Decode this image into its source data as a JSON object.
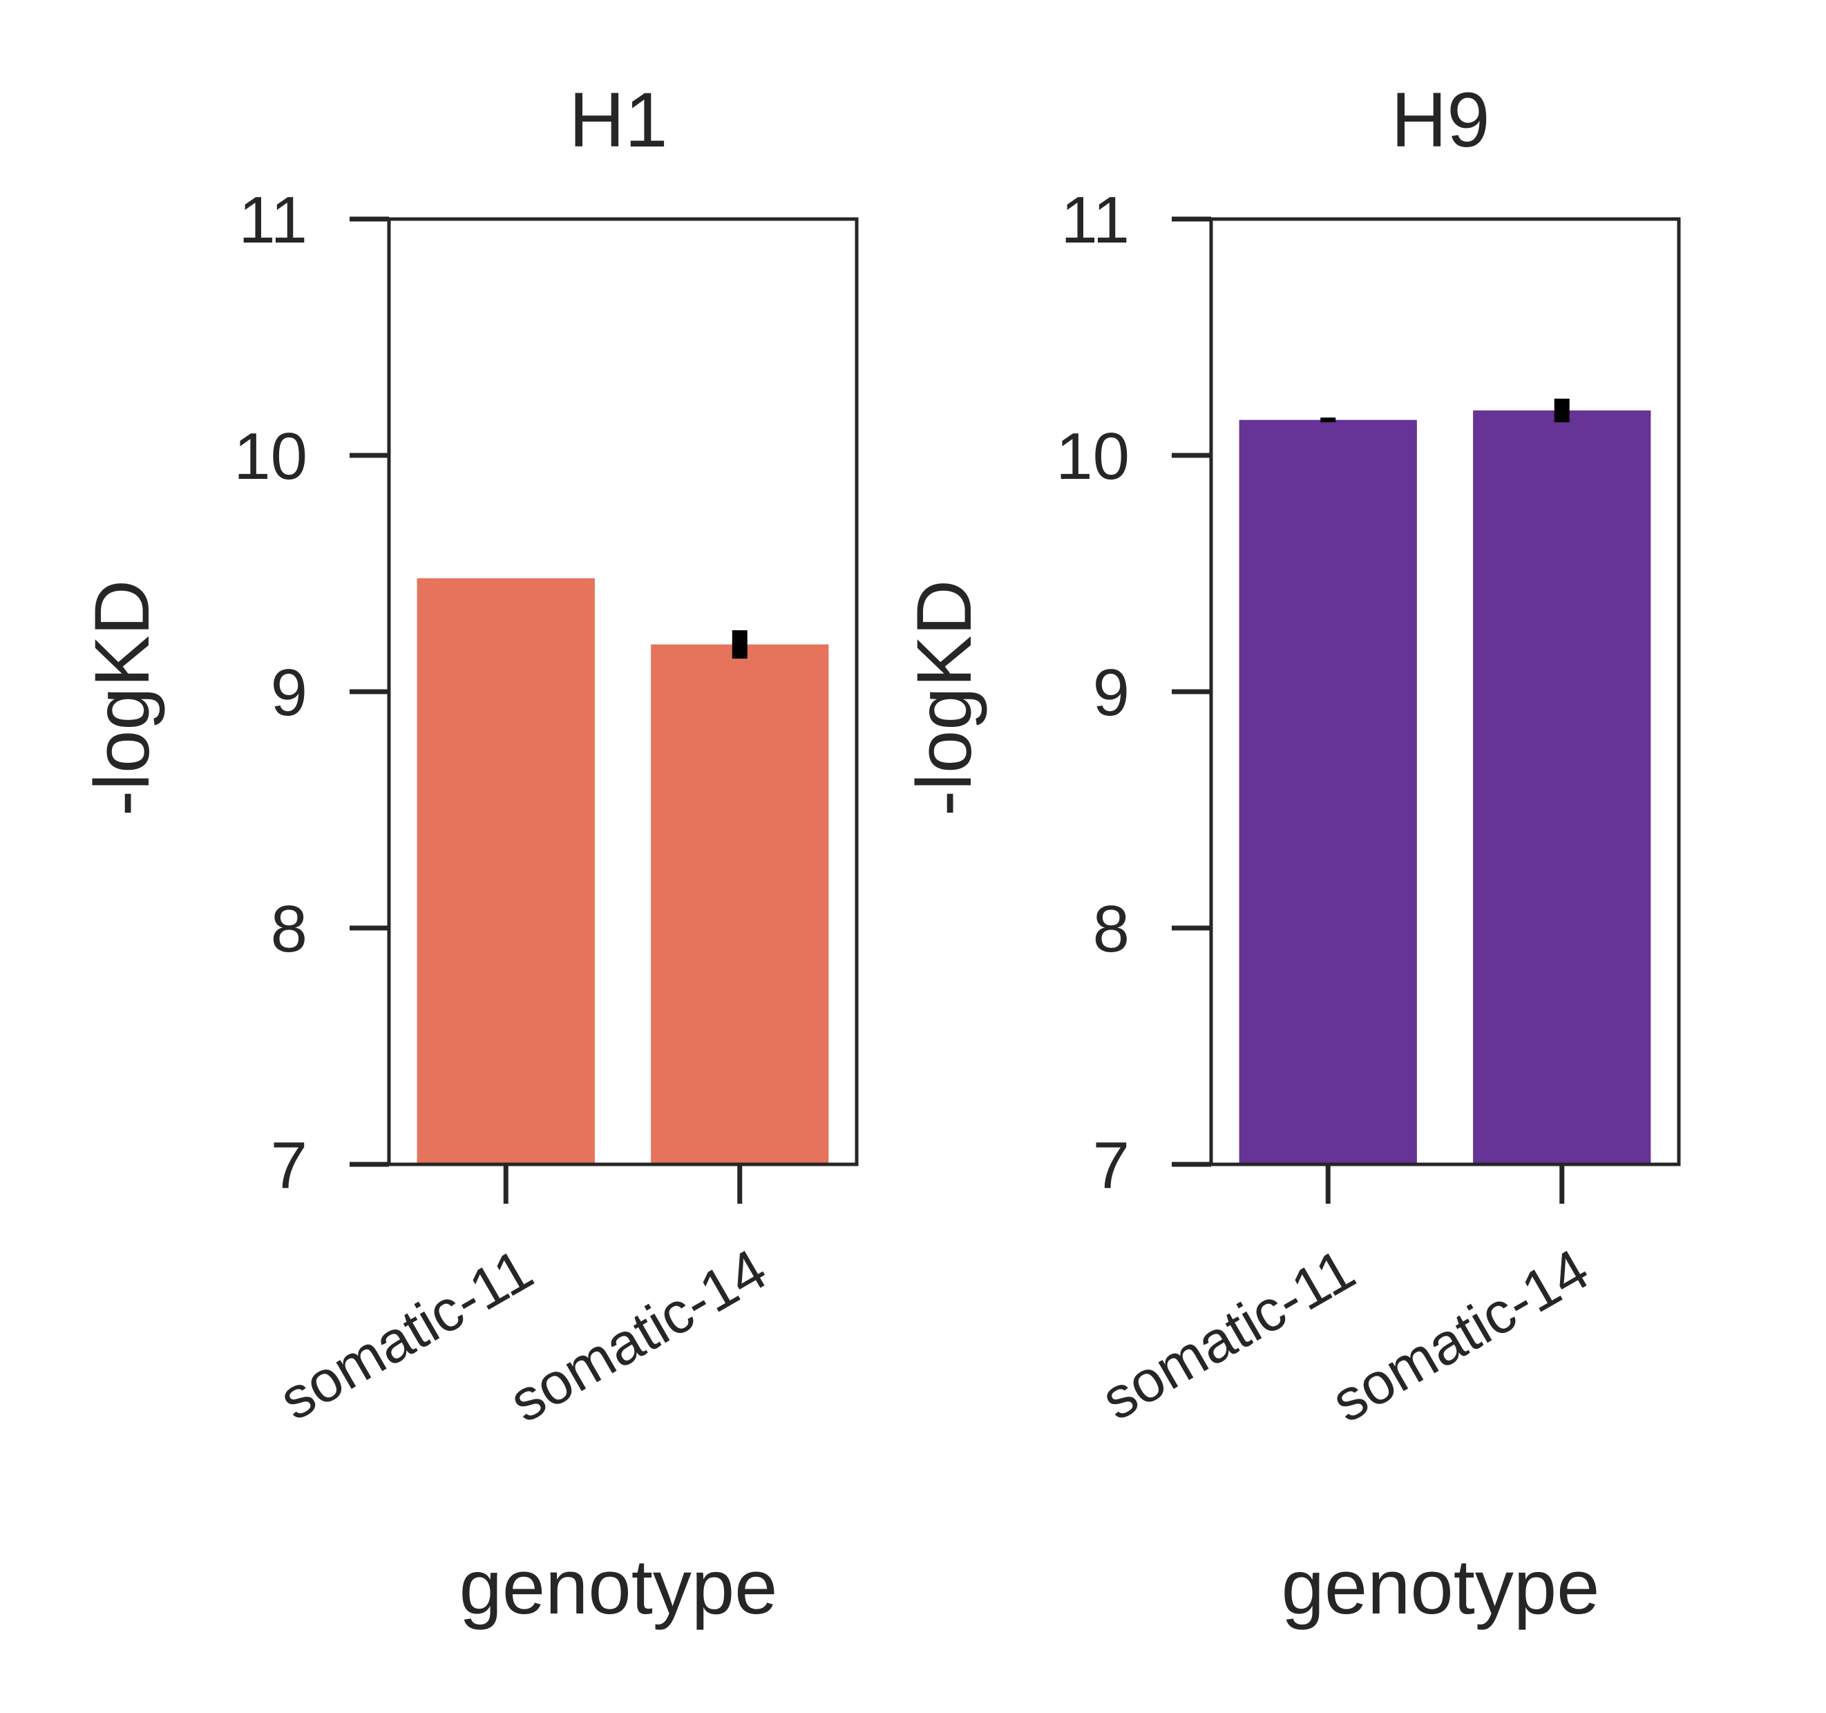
{
  "chart_data": [
    {
      "type": "bar",
      "title": "H1",
      "xlabel": "genotype",
      "ylabel": "-logKD",
      "ylim": [
        7,
        11
      ],
      "yticks": [
        "7",
        "8",
        "9",
        "10",
        "11"
      ],
      "categories": [
        "somatic-11",
        "somatic-14"
      ],
      "values": [
        9.48,
        9.2
      ],
      "errors": [
        0.0,
        0.06
      ],
      "bar_color": "#e6735c",
      "grid": false
    },
    {
      "type": "bar",
      "title": "H9",
      "xlabel": "genotype",
      "ylabel": "-logKD",
      "ylim": [
        7,
        11
      ],
      "yticks": [
        "7",
        "8",
        "9",
        "10",
        "11"
      ],
      "categories": [
        "somatic-11",
        "somatic-14"
      ],
      "values": [
        10.15,
        10.19
      ],
      "errors": [
        0.01,
        0.05
      ],
      "bar_color": "#663396",
      "grid": false
    }
  ]
}
